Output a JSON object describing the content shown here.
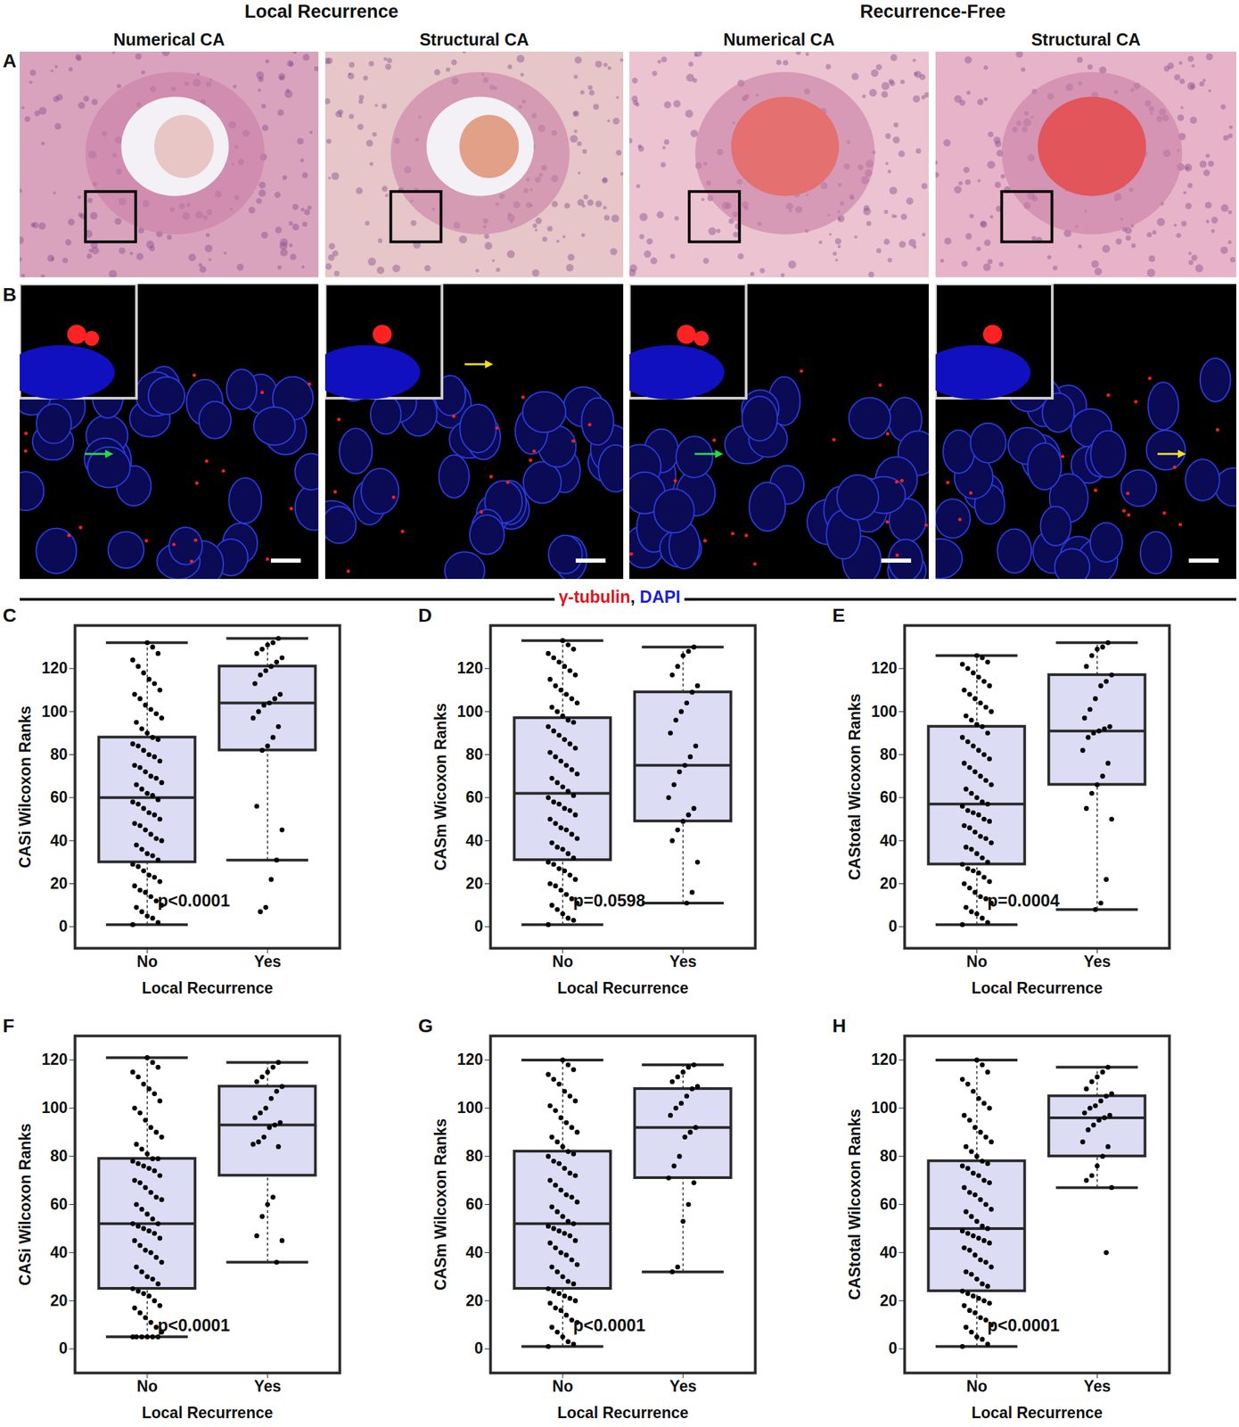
{
  "figure": {
    "groups": [
      "Local Recurrence",
      "Recurrence-Free"
    ],
    "columns": [
      "Numerical CA",
      "Structural CA",
      "Numerical CA",
      "Structural CA"
    ],
    "panels": [
      "A",
      "B"
    ],
    "stain": [
      {
        "text": "γ-tubulin",
        "color": "#e3141c"
      },
      {
        "text": ", ",
        "color": "#111111"
      },
      {
        "text": "DAPI",
        "color": "#1b22d4"
      }
    ]
  },
  "chart_data": [
    {
      "type": "box",
      "title": "C",
      "ylabel": "CASi Wilcoxon Ranks",
      "xlabel": "Local Recurrence",
      "categories": [
        "No",
        "Yes"
      ],
      "color": "#dcdcf5",
      "ylim": [
        -10,
        140
      ],
      "yticks": [
        0,
        20,
        40,
        60,
        80,
        100,
        120
      ],
      "annotation": "p<0.0001",
      "boxes": [
        {
          "whislo": 1,
          "q1": 30,
          "med": 60,
          "q3": 88,
          "whishi": 132
        },
        {
          "whislo": 31,
          "q1": 82,
          "med": 104,
          "q3": 121,
          "whishi": 134
        }
      ],
      "points": [
        [
          1,
          2,
          4,
          5,
          7,
          9,
          10,
          12,
          14,
          16,
          17,
          19,
          21,
          23,
          24,
          26,
          28,
          29,
          31,
          33,
          34,
          36,
          38,
          40,
          41,
          43,
          45,
          47,
          48,
          50,
          52,
          53,
          55,
          57,
          58,
          59,
          61,
          62,
          64,
          66,
          67,
          69,
          70,
          72,
          74,
          75,
          77,
          79,
          80,
          82,
          84,
          85,
          87,
          88,
          90,
          92,
          95,
          97,
          99,
          101,
          103,
          106,
          108,
          110,
          113,
          115,
          118,
          121,
          124,
          127,
          130,
          132
        ],
        [
          134,
          132,
          131,
          129,
          127,
          125,
          123,
          121,
          119,
          117,
          113,
          108,
          106,
          104,
          103,
          100,
          97,
          93,
          88,
          84,
          82,
          56,
          45,
          31,
          22,
          9,
          7
        ]
      ]
    },
    {
      "type": "box",
      "title": "D",
      "ylabel": "CASm Wicoxon Ranks",
      "xlabel": "Local Recurrence",
      "categories": [
        "No",
        "Yes"
      ],
      "color": "#dcdcf5",
      "ylim": [
        -10,
        140
      ],
      "yticks": [
        0,
        20,
        40,
        60,
        80,
        100,
        120
      ],
      "annotation": "p=0.0598",
      "boxes": [
        {
          "whislo": 1,
          "q1": 31,
          "med": 62,
          "q3": 97,
          "whishi": 133
        },
        {
          "whislo": 11,
          "q1": 49,
          "med": 75,
          "q3": 109,
          "whishi": 130
        }
      ],
      "points": [
        [
          1,
          3,
          4,
          6,
          8,
          10,
          11,
          13,
          15,
          17,
          19,
          20,
          22,
          24,
          26,
          27,
          29,
          30,
          32,
          34,
          36,
          37,
          39,
          41,
          43,
          45,
          46,
          48,
          50,
          52,
          54,
          55,
          57,
          58,
          60,
          61,
          63,
          65,
          67,
          69,
          71,
          73,
          75,
          77,
          79,
          81,
          83,
          85,
          87,
          89,
          91,
          93,
          95,
          96,
          98,
          100,
          102,
          104,
          106,
          108,
          110,
          112,
          115,
          117,
          119,
          121,
          123,
          125,
          127,
          129,
          131,
          133
        ],
        [
          130,
          128,
          126,
          121,
          117,
          112,
          109,
          104,
          100,
          96,
          90,
          84,
          79,
          75,
          72,
          66,
          60,
          55,
          52,
          49,
          45,
          40,
          30,
          16,
          11
        ]
      ]
    },
    {
      "type": "box",
      "title": "E",
      "ylabel": "CAStotal Wicoxon Ranks",
      "xlabel": "Local Recurrence",
      "categories": [
        "No",
        "Yes"
      ],
      "color": "#dcdcf5",
      "ylim": [
        -10,
        140
      ],
      "yticks": [
        0,
        20,
        40,
        60,
        80,
        100,
        120
      ],
      "annotation": "p=0.0004",
      "boxes": [
        {
          "whislo": 1,
          "q1": 29,
          "med": 57,
          "q3": 93,
          "whishi": 126
        },
        {
          "whislo": 8,
          "q1": 66,
          "med": 91,
          "q3": 117,
          "whishi": 132
        }
      ],
      "points": [
        [
          1,
          2,
          4,
          6,
          7,
          9,
          11,
          13,
          14,
          16,
          18,
          20,
          21,
          23,
          25,
          26,
          27,
          29,
          30,
          32,
          34,
          36,
          37,
          39,
          41,
          42,
          44,
          46,
          47,
          49,
          50,
          52,
          53,
          54,
          56,
          57,
          58,
          60,
          62,
          64,
          66,
          68,
          70,
          72,
          74,
          76,
          78,
          80,
          82,
          84,
          86,
          88,
          90,
          93,
          94,
          96,
          98,
          100,
          102,
          104,
          106,
          108,
          110,
          112,
          114,
          116,
          118,
          120,
          122,
          123,
          125,
          126
        ],
        [
          132,
          130,
          129,
          126,
          121,
          117,
          114,
          112,
          106,
          101,
          97,
          93,
          92,
          91,
          90,
          88,
          82,
          76,
          70,
          66,
          62,
          55,
          50,
          22,
          11,
          8
        ]
      ]
    },
    {
      "type": "box",
      "title": "F",
      "ylabel": "CASi Wilcoxon Ranks",
      "xlabel": "Local Recurrence",
      "categories": [
        "No",
        "Yes"
      ],
      "color": "#dcdcf5",
      "ylim": [
        -10,
        130
      ],
      "yticks": [
        0,
        20,
        40,
        60,
        80,
        100,
        120
      ],
      "annotation": "p<0.0001",
      "boxes": [
        {
          "whislo": 5,
          "q1": 25,
          "med": 52,
          "q3": 79,
          "whishi": 121
        },
        {
          "whislo": 36,
          "q1": 72,
          "med": 93,
          "q3": 109,
          "whishi": 119
        }
      ],
      "points": [
        [
          5,
          5,
          5,
          5,
          5,
          5,
          7,
          9,
          11,
          13,
          15,
          17,
          18,
          20,
          22,
          23,
          24,
          25,
          27,
          29,
          30,
          32,
          34,
          36,
          38,
          40,
          41,
          43,
          45,
          46,
          48,
          49,
          50,
          51,
          52,
          52,
          54,
          56,
          58,
          60,
          62,
          63,
          65,
          67,
          69,
          70,
          72,
          74,
          75,
          76,
          77,
          78,
          79,
          79,
          81,
          83,
          85,
          88,
          90,
          92,
          95,
          98,
          100,
          103,
          106,
          108,
          110,
          113,
          115,
          117,
          119,
          121
        ],
        [
          119,
          117,
          115,
          113,
          111,
          109,
          107,
          104,
          100,
          98,
          96,
          94,
          93,
          92,
          88,
          86,
          85,
          84,
          63,
          60,
          55,
          47,
          45,
          36
        ]
      ]
    },
    {
      "type": "box",
      "title": "G",
      "ylabel": "CASm Wilcoxon Ranks",
      "xlabel": "Local Recurrence",
      "categories": [
        "No",
        "Yes"
      ],
      "color": "#dcdcf5",
      "ylim": [
        -10,
        130
      ],
      "yticks": [
        0,
        20,
        40,
        60,
        80,
        100,
        120
      ],
      "annotation": "p<0.0001",
      "boxes": [
        {
          "whislo": 1,
          "q1": 25,
          "med": 52,
          "q3": 82,
          "whishi": 120
        },
        {
          "whislo": 32,
          "q1": 71,
          "med": 92,
          "q3": 108,
          "whishi": 118
        }
      ],
      "points": [
        [
          1,
          2,
          3,
          5,
          7,
          9,
          11,
          12,
          14,
          16,
          17,
          19,
          20,
          21,
          22,
          23,
          24,
          25,
          27,
          28,
          30,
          32,
          34,
          35,
          37,
          39,
          40,
          42,
          44,
          45,
          47,
          48,
          49,
          50,
          51,
          52,
          53,
          55,
          57,
          59,
          61,
          63,
          64,
          66,
          68,
          70,
          72,
          73,
          75,
          77,
          78,
          80,
          81,
          82,
          84,
          86,
          88,
          90,
          92,
          94,
          96,
          99,
          101,
          103,
          105,
          107,
          110,
          112,
          114,
          116,
          118,
          120
        ],
        [
          118,
          117,
          115,
          113,
          111,
          109,
          108,
          105,
          102,
          100,
          97,
          92,
          90,
          88,
          80,
          76,
          71,
          69,
          60,
          53,
          34,
          32
        ]
      ]
    },
    {
      "type": "box",
      "title": "H",
      "ylabel": "CAStotal Wilcoxon Ranks",
      "xlabel": "Local Recurrence",
      "categories": [
        "No",
        "Yes"
      ],
      "color": "#dcdcf5",
      "ylim": [
        -10,
        130
      ],
      "yticks": [
        0,
        20,
        40,
        60,
        80,
        100,
        120
      ],
      "annotation": "p<0.0001",
      "boxes": [
        {
          "whislo": 1,
          "q1": 24,
          "med": 50,
          "q3": 78,
          "whishi": 120
        },
        {
          "whislo": 67,
          "q1": 80,
          "med": 96,
          "q3": 105,
          "whishi": 117
        }
      ],
      "points": [
        [
          1,
          2,
          4,
          5,
          7,
          9,
          10,
          12,
          13,
          15,
          16,
          18,
          19,
          20,
          21,
          22,
          23,
          24,
          26,
          27,
          29,
          31,
          32,
          34,
          36,
          37,
          39,
          41,
          42,
          44,
          45,
          46,
          47,
          48,
          49,
          50,
          51,
          53,
          55,
          57,
          58,
          60,
          62,
          64,
          65,
          67,
          69,
          70,
          72,
          73,
          75,
          76,
          77,
          78,
          80,
          82,
          84,
          86,
          88,
          90,
          92,
          95,
          97,
          100,
          102,
          104,
          107,
          110,
          112,
          115,
          118,
          120
        ],
        [
          117,
          115,
          113,
          111,
          108,
          106,
          105,
          103,
          101,
          100,
          98,
          97,
          96,
          95,
          93,
          91,
          86,
          84,
          80,
          76,
          72,
          70,
          67,
          40
        ]
      ]
    }
  ]
}
